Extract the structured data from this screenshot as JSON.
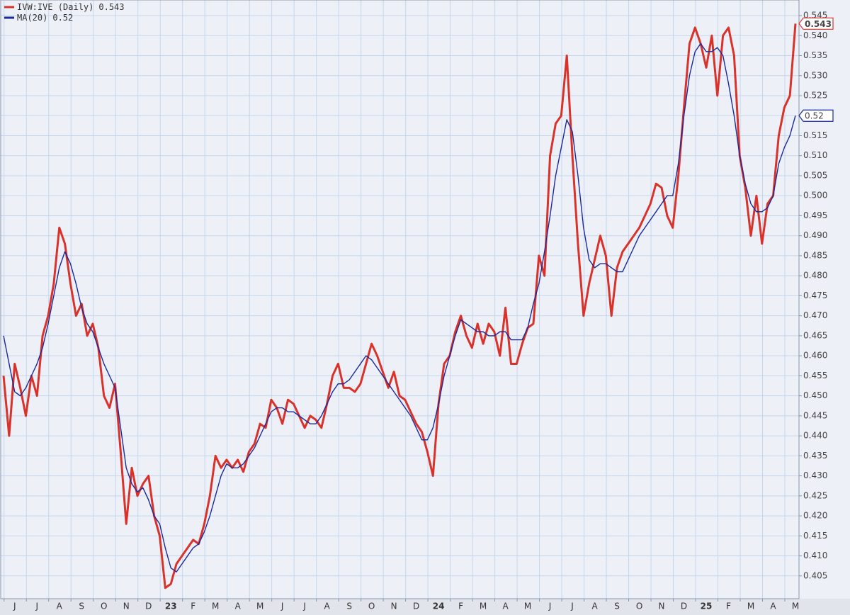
{
  "chart_data": {
    "type": "line",
    "categories": [
      null,
      null,
      "J",
      null,
      null,
      null,
      "J",
      null,
      null,
      null,
      "A",
      null,
      null,
      null,
      "S",
      null,
      null,
      null,
      "O",
      null,
      null,
      null,
      "N",
      null,
      null,
      null,
      "D",
      null,
      null,
      null,
      "23",
      null,
      null,
      null,
      "F",
      null,
      null,
      null,
      "M",
      null,
      null,
      null,
      "A",
      null,
      null,
      null,
      "M",
      null,
      null,
      null,
      "J",
      null,
      null,
      null,
      "J",
      null,
      null,
      null,
      "A",
      null,
      null,
      null,
      "S",
      null,
      null,
      null,
      "O",
      null,
      null,
      null,
      "N",
      null,
      null,
      null,
      "D",
      null,
      null,
      null,
      "24",
      null,
      null,
      null,
      "F",
      null,
      null,
      null,
      "M",
      null,
      null,
      null,
      "A",
      null,
      null,
      null,
      "M",
      null,
      null,
      null,
      "J",
      null,
      null,
      null,
      "J",
      null,
      null,
      null,
      "A",
      null,
      null,
      null,
      "S",
      null,
      null,
      null,
      "O",
      null,
      null,
      null,
      "N",
      null,
      null,
      null,
      "D",
      null,
      null,
      null,
      "25",
      null,
      null,
      null,
      "F",
      null,
      null,
      null,
      "M",
      null,
      null,
      null,
      "A",
      null,
      null,
      null,
      "M"
    ],
    "series": [
      {
        "name": "IVW:IVE (Daily)",
        "color": "#d8322a",
        "values": [
          0.455,
          0.44,
          0.458,
          0.452,
          0.445,
          0.455,
          0.45,
          0.465,
          0.47,
          0.478,
          0.492,
          0.488,
          0.478,
          0.47,
          0.473,
          0.465,
          0.468,
          0.462,
          0.45,
          0.447,
          0.453,
          0.436,
          0.418,
          0.432,
          0.425,
          0.428,
          0.43,
          0.42,
          0.415,
          0.402,
          0.403,
          0.408,
          0.41,
          0.412,
          0.414,
          0.413,
          0.418,
          0.425,
          0.435,
          0.432,
          0.434,
          0.432,
          0.434,
          0.431,
          0.436,
          0.438,
          0.443,
          0.442,
          0.449,
          0.447,
          0.443,
          0.449,
          0.448,
          0.445,
          0.442,
          0.445,
          0.444,
          0.442,
          0.448,
          0.455,
          0.458,
          0.452,
          0.452,
          0.451,
          0.453,
          0.458,
          0.463,
          0.46,
          0.456,
          0.452,
          0.456,
          0.45,
          0.449,
          0.446,
          0.443,
          0.441,
          0.436,
          0.43,
          0.448,
          0.458,
          0.46,
          0.466,
          0.47,
          0.465,
          0.462,
          0.468,
          0.463,
          0.468,
          0.466,
          0.46,
          0.472,
          0.458,
          0.458,
          0.463,
          0.467,
          0.468,
          0.485,
          0.48,
          0.51,
          0.518,
          0.52,
          0.535,
          0.51,
          0.488,
          0.47,
          0.478,
          0.484,
          0.49,
          0.485,
          0.47,
          0.482,
          0.486,
          0.488,
          0.49,
          0.492,
          0.495,
          0.498,
          0.503,
          0.502,
          0.495,
          0.492,
          0.505,
          0.522,
          0.538,
          0.542,
          0.538,
          0.532,
          0.54,
          0.525,
          0.54,
          0.542,
          0.535,
          0.51,
          0.502,
          0.49,
          0.5,
          0.488,
          0.498,
          0.5,
          0.515,
          0.522,
          0.525,
          0.543
        ]
      },
      {
        "name": "MA(20)",
        "color": "#1a2a9a",
        "values": [
          0.465,
          0.458,
          0.451,
          0.45,
          0.452,
          0.455,
          0.458,
          0.462,
          0.468,
          0.475,
          0.482,
          0.486,
          0.483,
          0.478,
          0.472,
          0.468,
          0.466,
          0.462,
          0.458,
          0.455,
          0.452,
          0.442,
          0.432,
          0.428,
          0.426,
          0.427,
          0.424,
          0.42,
          0.418,
          0.412,
          0.407,
          0.406,
          0.408,
          0.41,
          0.412,
          0.413,
          0.416,
          0.42,
          0.425,
          0.43,
          0.433,
          0.432,
          0.432,
          0.433,
          0.435,
          0.437,
          0.44,
          0.443,
          0.446,
          0.447,
          0.447,
          0.446,
          0.446,
          0.445,
          0.444,
          0.443,
          0.443,
          0.445,
          0.448,
          0.451,
          0.453,
          0.453,
          0.454,
          0.456,
          0.458,
          0.46,
          0.459,
          0.457,
          0.455,
          0.453,
          0.451,
          0.449,
          0.447,
          0.445,
          0.442,
          0.439,
          0.439,
          0.442,
          0.448,
          0.455,
          0.46,
          0.465,
          0.469,
          0.468,
          0.467,
          0.466,
          0.466,
          0.465,
          0.465,
          0.466,
          0.466,
          0.464,
          0.464,
          0.464,
          0.467,
          0.473,
          0.478,
          0.486,
          0.495,
          0.505,
          0.512,
          0.519,
          0.516,
          0.505,
          0.492,
          0.484,
          0.482,
          0.483,
          0.483,
          0.482,
          0.481,
          0.481,
          0.484,
          0.487,
          0.49,
          0.492,
          0.494,
          0.496,
          0.498,
          0.5,
          0.5,
          0.508,
          0.52,
          0.53,
          0.536,
          0.538,
          0.536,
          0.536,
          0.537,
          0.535,
          0.528,
          0.52,
          0.51,
          0.503,
          0.498,
          0.496,
          0.496,
          0.497,
          0.5,
          0.508,
          0.512,
          0.515,
          0.52
        ]
      }
    ],
    "ylim": [
      0.3993,
      0.5489
    ],
    "yticks": [
      {
        "value": 0.405,
        "label": "0.405"
      },
      {
        "value": 0.41,
        "label": "0.410"
      },
      {
        "value": 0.415,
        "label": "0.415"
      },
      {
        "value": 0.42,
        "label": "0.420"
      },
      {
        "value": 0.425,
        "label": "0.425"
      },
      {
        "value": 0.43,
        "label": "0.430"
      },
      {
        "value": 0.435,
        "label": "0.435"
      },
      {
        "value": 0.44,
        "label": "0.440"
      },
      {
        "value": 0.445,
        "label": "0.445"
      },
      {
        "value": 0.45,
        "label": "0.450"
      },
      {
        "value": 0.455,
        "label": "0.455"
      },
      {
        "value": 0.46,
        "label": "0.460"
      },
      {
        "value": 0.465,
        "label": "0.465"
      },
      {
        "value": 0.47,
        "label": "0.470"
      },
      {
        "value": 0.475,
        "label": "0.475"
      },
      {
        "value": 0.48,
        "label": "0.480"
      },
      {
        "value": 0.485,
        "label": "0.485"
      },
      {
        "value": 0.49,
        "label": "0.490"
      },
      {
        "value": 0.495,
        "label": "0.495"
      },
      {
        "value": 0.5,
        "label": "0.500"
      },
      {
        "value": 0.505,
        "label": "0.505"
      },
      {
        "value": 0.51,
        "label": "0.510"
      },
      {
        "value": 0.515,
        "label": "0.515"
      },
      {
        "value": 0.52,
        "label": "0.520"
      },
      {
        "value": 0.525,
        "label": "0.525"
      },
      {
        "value": 0.53,
        "label": "0.530"
      },
      {
        "value": 0.535,
        "label": "0.535"
      },
      {
        "value": 0.54,
        "label": "0.540"
      },
      {
        "value": 0.545,
        "label": "0.545"
      }
    ],
    "grid": true,
    "legend": "top-left"
  }
}
